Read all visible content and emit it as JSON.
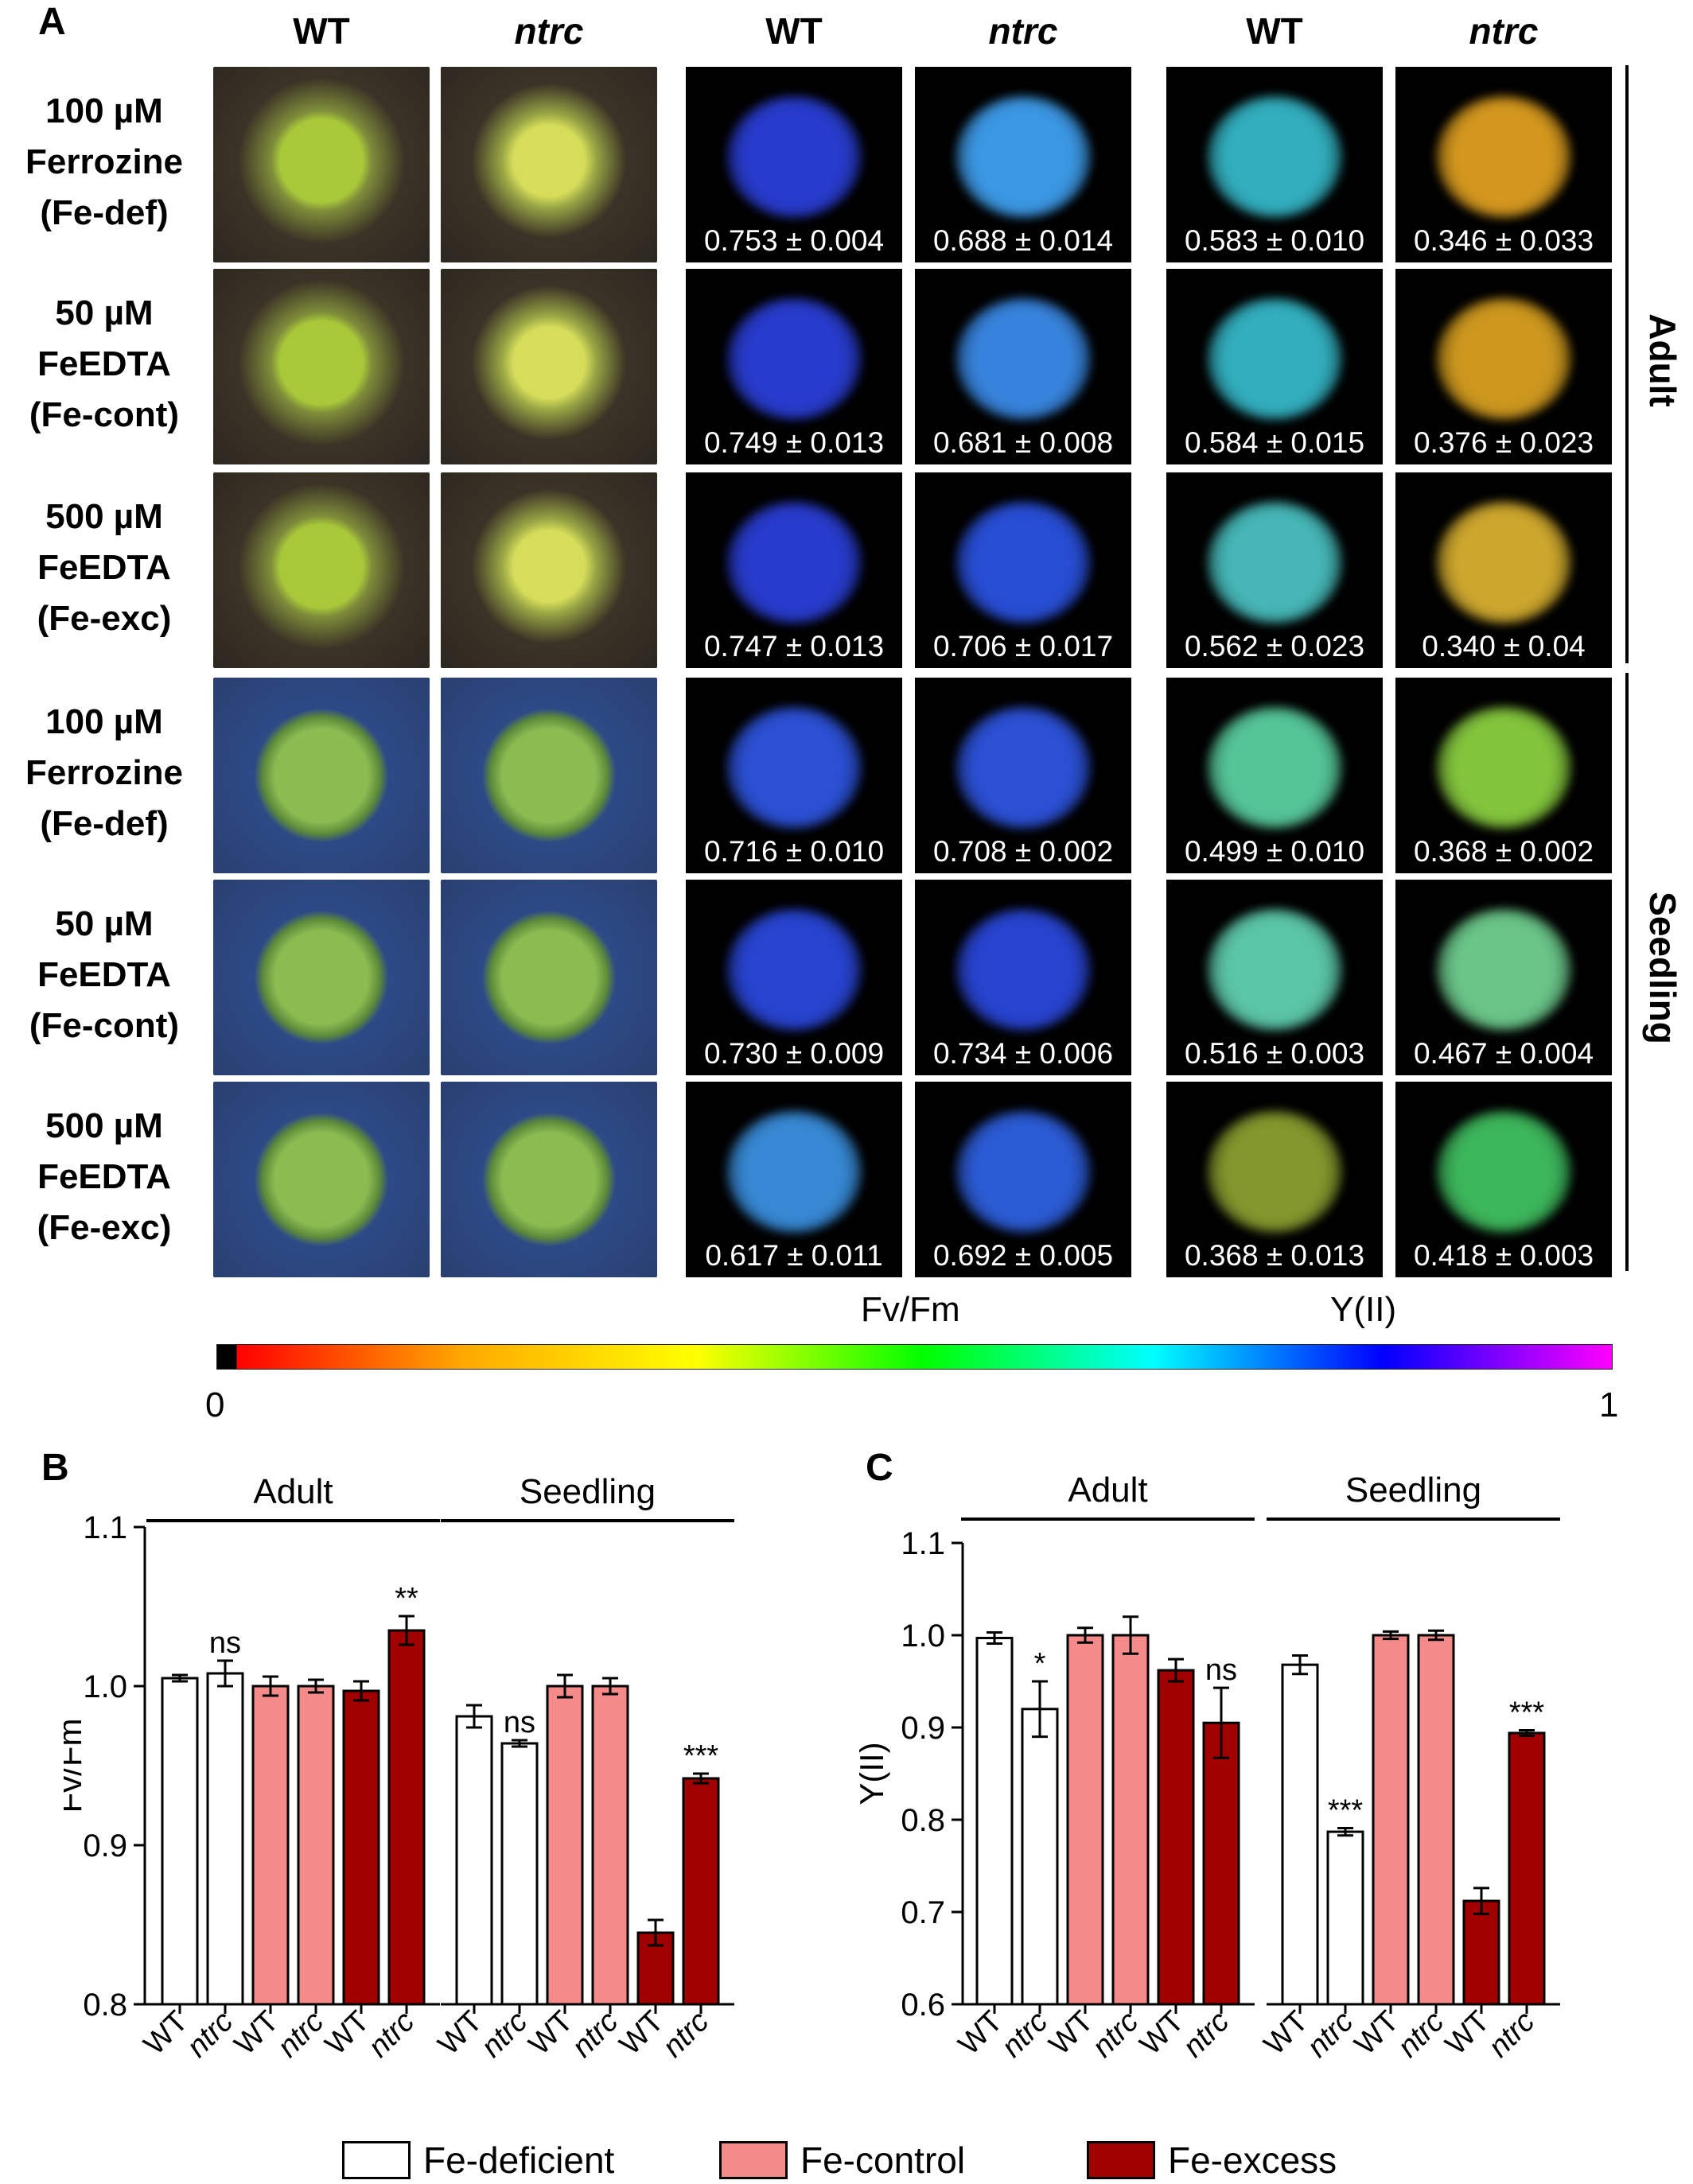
{
  "panel_a": {
    "letter": "A",
    "column_headers": [
      "WT",
      "ntrc",
      "WT",
      "ntrc",
      "WT",
      "ntrc"
    ],
    "row_labels": [
      [
        "100 µM",
        "Ferrozine",
        "(Fe-def)"
      ],
      [
        "50 µM",
        "FeEDTA",
        "(Fe-cont)"
      ],
      [
        "500 µM",
        "FeEDTA",
        "(Fe-exc)"
      ],
      [
        "100 µM",
        "Ferrozine",
        "(Fe-def)"
      ],
      [
        "50 µM",
        "FeEDTA",
        "(Fe-cont)"
      ],
      [
        "500 µM",
        "FeEDTA",
        "(Fe-exc)"
      ]
    ],
    "side_labels": [
      "Adult",
      "Seedling"
    ],
    "image_values": [
      [
        "0.753 ± 0.004",
        "0.688 ± 0.014",
        "0.583 ± 0.010",
        "0.346 ± 0.033"
      ],
      [
        "0.749 ± 0.013",
        "0.681 ± 0.008",
        "0.584 ± 0.015",
        "0.376 ± 0.023"
      ],
      [
        "0.747 ± 0.013",
        "0.706 ± 0.017",
        "0.562 ± 0.023",
        "0.340 ± 0.04"
      ],
      [
        "0.716 ± 0.010",
        "0.708 ± 0.002",
        "0.499 ± 0.010",
        "0.368 ± 0.002"
      ],
      [
        "0.730 ± 0.009",
        "0.734 ± 0.006",
        "0.516 ± 0.003",
        "0.467 ± 0.004"
      ],
      [
        "0.617 ± 0.011",
        "0.692 ± 0.005",
        "0.368 ± 0.013",
        "0.418 ± 0.003"
      ]
    ],
    "image_colors": [
      [
        "#2a3fd8",
        "#3fa0f0",
        "#35b8c8",
        "#e0a020"
      ],
      [
        "#2a3fd8",
        "#3a8ae8",
        "#35b8c8",
        "#d8a020"
      ],
      [
        "#2a3fd8",
        "#2a52e0",
        "#4ac0c0",
        "#d8b030"
      ],
      [
        "#2e55e0",
        "#2e55e0",
        "#5ad0a0",
        "#8ad040"
      ],
      [
        "#2a48dc",
        "#2a48dc",
        "#60d0b0",
        "#70d090"
      ],
      [
        "#3a90e0",
        "#2e60e0",
        "#8aa030",
        "#40c060"
      ]
    ],
    "measure_labels": [
      "Fv/Fm",
      "Y(II)"
    ],
    "colorbar": {
      "min_label": "0",
      "max_label": "1",
      "stops": [
        "#000000",
        "#ff0000",
        "#ffaa00",
        "#ffff00",
        "#00ff00",
        "#00ffff",
        "#0000ff",
        "#ff00ff"
      ]
    }
  },
  "chart_data": [
    {
      "panel": "B",
      "type": "bar",
      "ylabel": "Fv/Fm",
      "ylim": [
        0.8,
        1.1
      ],
      "yticks": [
        0.8,
        0.9,
        1.0,
        1.1
      ],
      "ytick_labels": [
        "0.8",
        "0.9",
        "1.0",
        "1.1"
      ],
      "group_labels": [
        "Adult",
        "Seedling"
      ],
      "categories": [
        "WT",
        "ntrc",
        "WT",
        "ntrc",
        "WT",
        "ntrc",
        "WT",
        "ntrc",
        "WT",
        "ntrc",
        "WT",
        "ntrc"
      ],
      "conditions": [
        "Fe-deficient",
        "Fe-deficient",
        "Fe-control",
        "Fe-control",
        "Fe-excess",
        "Fe-excess",
        "Fe-deficient",
        "Fe-deficient",
        "Fe-control",
        "Fe-control",
        "Fe-excess",
        "Fe-excess"
      ],
      "values": [
        1.005,
        1.008,
        1.0,
        1.0,
        0.997,
        1.035,
        0.981,
        0.964,
        1.0,
        1.0,
        0.845,
        0.942
      ],
      "errors": [
        0.002,
        0.008,
        0.006,
        0.004,
        0.006,
        0.009,
        0.007,
        0.002,
        0.007,
        0.005,
        0.008,
        0.003
      ],
      "annotations": [
        "",
        "ns",
        "",
        "",
        "",
        "**",
        "",
        "ns",
        "",
        "",
        "",
        "***"
      ]
    },
    {
      "panel": "C",
      "type": "bar",
      "ylabel": "Y(II)",
      "ylim": [
        0.6,
        1.1
      ],
      "yticks": [
        0.6,
        0.7,
        0.8,
        0.9,
        1.0,
        1.1
      ],
      "ytick_labels": [
        "0.6",
        "0.7",
        "0.8",
        "0.9",
        "1.0",
        "1.1"
      ],
      "group_labels": [
        "Adult",
        "Seedling"
      ],
      "categories": [
        "WT",
        "ntrc",
        "WT",
        "ntrc",
        "WT",
        "ntrc",
        "WT",
        "ntrc",
        "WT",
        "ntrc",
        "WT",
        "ntrc"
      ],
      "conditions": [
        "Fe-deficient",
        "Fe-deficient",
        "Fe-control",
        "Fe-control",
        "Fe-excess",
        "Fe-excess",
        "Fe-deficient",
        "Fe-deficient",
        "Fe-control",
        "Fe-control",
        "Fe-excess",
        "Fe-excess"
      ],
      "values": [
        0.997,
        0.92,
        1.0,
        1.0,
        0.962,
        0.905,
        0.968,
        0.787,
        1.0,
        1.0,
        0.712,
        0.894
      ],
      "errors": [
        0.006,
        0.03,
        0.008,
        0.02,
        0.012,
        0.038,
        0.01,
        0.004,
        0.004,
        0.005,
        0.014,
        0.003
      ],
      "annotations": [
        "",
        "*",
        "",
        "",
        "",
        "ns",
        "",
        "***",
        "",
        "",
        "",
        "***"
      ]
    }
  ],
  "legend": {
    "items": [
      {
        "label": "Fe-deficient",
        "color": "#ffffff"
      },
      {
        "label": "Fe-control",
        "color": "#f58a8a"
      },
      {
        "label": "Fe-excess",
        "color": "#a00000"
      }
    ]
  }
}
